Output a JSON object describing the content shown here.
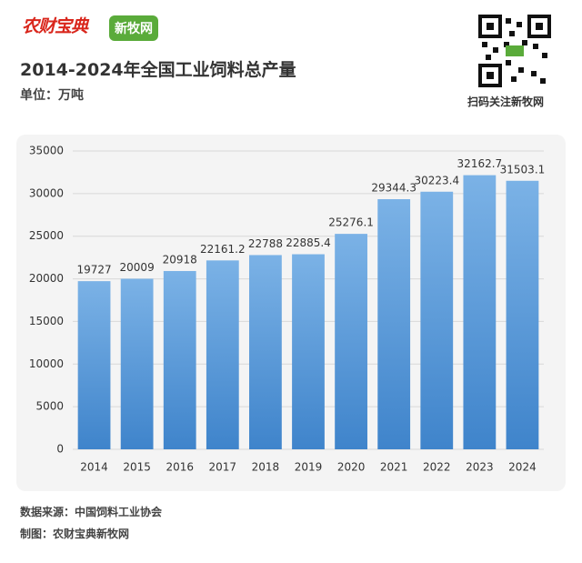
{
  "header": {
    "logo_main": "农财宝典",
    "logo_secondary": "新牧网",
    "qr_caption": "扫码关注新牧网"
  },
  "chart_data": {
    "type": "bar",
    "title": "2014-2024年全国工业饲料总产量",
    "subtitle": "单位：万吨",
    "categories": [
      "2014",
      "2015",
      "2016",
      "2017",
      "2018",
      "2019",
      "2020",
      "2021",
      "2022",
      "2023",
      "2024"
    ],
    "values": [
      19727,
      20009,
      20918,
      22161.2,
      22788,
      22885.4,
      25276.1,
      29344.3,
      30223.4,
      32162.7,
      31503.1
    ],
    "color": "#4a8fd4",
    "ylim": [
      0,
      35000
    ],
    "yticks": [
      0,
      5000,
      10000,
      15000,
      20000,
      25000,
      30000,
      35000
    ],
    "grid": true
  },
  "footer": {
    "source": "数据来源：中国饲料工业协会",
    "maker": "制图：农财宝典新牧网"
  }
}
